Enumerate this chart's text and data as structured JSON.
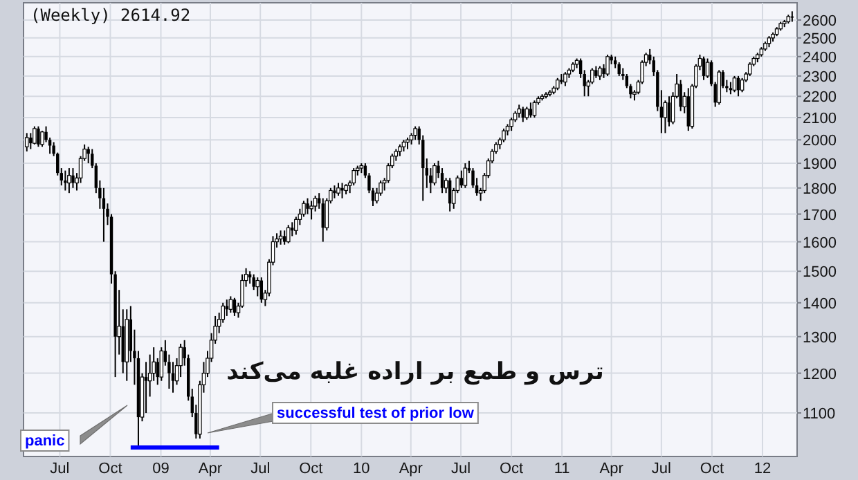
{
  "chart_data": {
    "type": "candlestick",
    "title": "(Weekly) 2614.92",
    "color": "#000000",
    "log": true,
    "grid": true,
    "x": [
      "2008-05-02",
      "2008-05-09",
      "2008-05-16",
      "2008-05-23",
      "2008-05-30",
      "2008-06-06",
      "2008-06-13",
      "2008-06-20",
      "2008-06-27",
      "2008-07-04",
      "2008-07-11",
      "2008-07-18",
      "2008-07-25",
      "2008-08-01",
      "2008-08-08",
      "2008-08-15",
      "2008-08-22",
      "2008-08-29",
      "2008-09-05",
      "2008-09-12",
      "2008-09-19",
      "2008-09-26",
      "2008-10-03",
      "2008-10-10",
      "2008-10-17",
      "2008-10-24",
      "2008-10-31",
      "2008-11-07",
      "2008-11-14",
      "2008-11-21",
      "2008-11-28",
      "2008-12-05",
      "2008-12-12",
      "2008-12-19",
      "2008-12-26",
      "2009-01-02",
      "2009-01-09",
      "2009-01-16",
      "2009-01-23",
      "2009-01-30",
      "2009-02-06",
      "2009-02-13",
      "2009-02-20",
      "2009-02-27",
      "2009-03-06",
      "2009-03-13",
      "2009-03-20",
      "2009-03-27",
      "2009-04-03",
      "2009-04-10",
      "2009-04-17",
      "2009-04-24",
      "2009-05-01",
      "2009-05-08",
      "2009-05-15",
      "2009-05-22",
      "2009-05-29",
      "2009-06-05",
      "2009-06-12",
      "2009-06-19",
      "2009-06-26",
      "2009-07-03",
      "2009-07-10",
      "2009-07-17",
      "2009-07-24",
      "2009-07-31",
      "2009-08-07",
      "2009-08-14",
      "2009-08-21",
      "2009-08-28",
      "2009-09-04",
      "2009-09-11",
      "2009-09-18",
      "2009-09-25",
      "2009-10-02",
      "2009-10-09",
      "2009-10-16",
      "2009-10-23",
      "2009-10-30",
      "2009-11-06",
      "2009-11-13",
      "2009-11-20",
      "2009-11-27",
      "2009-12-04",
      "2009-12-11",
      "2009-12-18",
      "2009-12-25",
      "2010-01-01",
      "2010-01-08",
      "2010-01-15",
      "2010-01-22",
      "2010-01-29",
      "2010-02-05",
      "2010-02-12",
      "2010-02-19",
      "2010-02-26",
      "2010-03-05",
      "2010-03-12",
      "2010-03-19",
      "2010-03-26",
      "2010-04-02",
      "2010-04-09",
      "2010-04-16",
      "2010-04-23",
      "2010-04-30",
      "2010-05-07",
      "2010-05-14",
      "2010-05-21",
      "2010-05-28",
      "2010-06-04",
      "2010-06-11",
      "2010-06-18",
      "2010-06-25",
      "2010-07-02",
      "2010-07-09",
      "2010-07-16",
      "2010-07-23",
      "2010-07-30",
      "2010-08-06",
      "2010-08-13",
      "2010-08-20",
      "2010-08-27",
      "2010-09-03",
      "2010-09-10",
      "2010-09-17",
      "2010-09-24",
      "2010-10-01",
      "2010-10-08",
      "2010-10-15",
      "2010-10-22",
      "2010-10-29",
      "2010-11-05",
      "2010-11-12",
      "2010-11-19",
      "2010-11-26",
      "2010-12-03",
      "2010-12-10",
      "2010-12-17",
      "2010-12-24",
      "2010-12-31",
      "2011-01-07",
      "2011-01-14",
      "2011-01-21",
      "2011-01-28",
      "2011-02-04",
      "2011-02-11",
      "2011-02-18",
      "2011-02-25",
      "2011-03-04",
      "2011-03-11",
      "2011-03-18",
      "2011-03-25",
      "2011-04-01",
      "2011-04-08",
      "2011-04-15",
      "2011-04-22",
      "2011-04-29",
      "2011-05-06",
      "2011-05-13",
      "2011-05-20",
      "2011-05-27",
      "2011-06-03",
      "2011-06-10",
      "2011-06-17",
      "2011-06-24",
      "2011-07-01",
      "2011-07-08",
      "2011-07-15",
      "2011-07-22",
      "2011-07-29",
      "2011-08-05",
      "2011-08-12",
      "2011-08-19",
      "2011-08-26",
      "2011-09-02",
      "2011-09-09",
      "2011-09-16",
      "2011-09-23",
      "2011-09-30",
      "2011-10-07",
      "2011-10-14",
      "2011-10-21",
      "2011-10-28",
      "2011-11-04",
      "2011-11-11",
      "2011-11-18",
      "2011-11-25",
      "2011-12-02",
      "2011-12-09",
      "2011-12-16",
      "2011-12-23",
      "2011-12-30",
      "2012-01-06",
      "2012-01-13",
      "2012-01-20",
      "2012-01-27",
      "2012-02-03",
      "2012-02-10",
      "2012-02-17",
      "2012-02-24"
    ],
    "ohlc": [
      [
        1970,
        2030,
        1950,
        2010
      ],
      [
        2010,
        2030,
        1960,
        1985
      ],
      [
        1985,
        2060,
        1980,
        2050
      ],
      [
        2050,
        2060,
        1970,
        1980
      ],
      [
        1980,
        2040,
        1970,
        2035
      ],
      [
        2035,
        2060,
        1990,
        2000
      ],
      [
        2000,
        2010,
        1940,
        1975
      ],
      [
        1975,
        1990,
        1930,
        1940
      ],
      [
        1940,
        1945,
        1850,
        1860
      ],
      [
        1860,
        1880,
        1810,
        1830
      ],
      [
        1830,
        1870,
        1790,
        1820
      ],
      [
        1820,
        1880,
        1780,
        1850
      ],
      [
        1850,
        1880,
        1800,
        1820
      ],
      [
        1820,
        1860,
        1790,
        1840
      ],
      [
        1840,
        1930,
        1820,
        1920
      ],
      [
        1920,
        1980,
        1910,
        1960
      ],
      [
        1960,
        1970,
        1900,
        1940
      ],
      [
        1940,
        1960,
        1880,
        1890
      ],
      [
        1890,
        1900,
        1780,
        1800
      ],
      [
        1800,
        1830,
        1720,
        1760
      ],
      [
        1760,
        1800,
        1600,
        1720
      ],
      [
        1720,
        1740,
        1660,
        1690
      ],
      [
        1690,
        1700,
        1460,
        1490
      ],
      [
        1490,
        1500,
        1190,
        1300
      ],
      [
        1300,
        1440,
        1250,
        1330
      ],
      [
        1330,
        1380,
        1200,
        1230
      ],
      [
        1230,
        1380,
        1180,
        1350
      ],
      [
        1350,
        1390,
        1230,
        1260
      ],
      [
        1260,
        1320,
        1170,
        1240
      ],
      [
        1240,
        1260,
        1020,
        1090
      ],
      [
        1090,
        1200,
        1080,
        1190
      ],
      [
        1190,
        1230,
        1100,
        1180
      ],
      [
        1180,
        1250,
        1140,
        1200
      ],
      [
        1200,
        1270,
        1180,
        1230
      ],
      [
        1230,
        1240,
        1170,
        1190
      ],
      [
        1190,
        1270,
        1180,
        1260
      ],
      [
        1260,
        1290,
        1220,
        1230
      ],
      [
        1230,
        1250,
        1160,
        1200
      ],
      [
        1200,
        1230,
        1150,
        1180
      ],
      [
        1180,
        1240,
        1170,
        1220
      ],
      [
        1220,
        1280,
        1190,
        1270
      ],
      [
        1270,
        1290,
        1220,
        1240
      ],
      [
        1240,
        1250,
        1130,
        1140
      ],
      [
        1140,
        1160,
        1090,
        1100
      ],
      [
        1100,
        1120,
        1040,
        1050
      ],
      [
        1050,
        1180,
        1040,
        1170
      ],
      [
        1170,
        1230,
        1150,
        1200
      ],
      [
        1200,
        1260,
        1190,
        1240
      ],
      [
        1240,
        1310,
        1230,
        1290
      ],
      [
        1290,
        1360,
        1280,
        1330
      ],
      [
        1330,
        1370,
        1310,
        1350
      ],
      [
        1350,
        1400,
        1340,
        1390
      ],
      [
        1390,
        1410,
        1360,
        1380
      ],
      [
        1380,
        1420,
        1370,
        1410
      ],
      [
        1410,
        1415,
        1360,
        1370
      ],
      [
        1370,
        1400,
        1355,
        1390
      ],
      [
        1390,
        1490,
        1385,
        1470
      ],
      [
        1470,
        1510,
        1450,
        1490
      ],
      [
        1490,
        1500,
        1460,
        1480
      ],
      [
        1480,
        1490,
        1440,
        1450
      ],
      [
        1450,
        1480,
        1420,
        1470
      ],
      [
        1470,
        1480,
        1400,
        1410
      ],
      [
        1410,
        1440,
        1390,
        1430
      ],
      [
        1430,
        1540,
        1420,
        1530
      ],
      [
        1530,
        1620,
        1520,
        1600
      ],
      [
        1600,
        1630,
        1580,
        1610
      ],
      [
        1610,
        1640,
        1590,
        1620
      ],
      [
        1620,
        1640,
        1590,
        1600
      ],
      [
        1600,
        1660,
        1595,
        1650
      ],
      [
        1650,
        1670,
        1620,
        1640
      ],
      [
        1640,
        1690,
        1625,
        1680
      ],
      [
        1680,
        1720,
        1660,
        1700
      ],
      [
        1700,
        1750,
        1690,
        1740
      ],
      [
        1740,
        1760,
        1700,
        1720
      ],
      [
        1720,
        1750,
        1680,
        1730
      ],
      [
        1730,
        1770,
        1710,
        1760
      ],
      [
        1760,
        1780,
        1720,
        1740
      ],
      [
        1740,
        1760,
        1600,
        1650
      ],
      [
        1650,
        1760,
        1640,
        1750
      ],
      [
        1750,
        1800,
        1740,
        1790
      ],
      [
        1790,
        1810,
        1760,
        1780
      ],
      [
        1780,
        1820,
        1770,
        1800
      ],
      [
        1800,
        1820,
        1760,
        1790
      ],
      [
        1790,
        1815,
        1775,
        1810
      ],
      [
        1810,
        1830,
        1780,
        1820
      ],
      [
        1820,
        1880,
        1810,
        1870
      ],
      [
        1870,
        1890,
        1850,
        1880
      ],
      [
        1880,
        1900,
        1860,
        1890
      ],
      [
        1890,
        1900,
        1840,
        1850
      ],
      [
        1850,
        1860,
        1780,
        1790
      ],
      [
        1790,
        1800,
        1730,
        1750
      ],
      [
        1750,
        1800,
        1740,
        1780
      ],
      [
        1780,
        1830,
        1770,
        1820
      ],
      [
        1820,
        1840,
        1790,
        1830
      ],
      [
        1830,
        1900,
        1820,
        1890
      ],
      [
        1890,
        1940,
        1880,
        1930
      ],
      [
        1930,
        1960,
        1910,
        1950
      ],
      [
        1950,
        1980,
        1930,
        1970
      ],
      [
        1970,
        2000,
        1950,
        1990
      ],
      [
        1990,
        2010,
        1960,
        2000
      ],
      [
        2000,
        2030,
        1980,
        2020
      ],
      [
        2020,
        2060,
        2000,
        2050
      ],
      [
        2050,
        2060,
        1980,
        2000
      ],
      [
        2000,
        2020,
        1750,
        1880
      ],
      [
        1880,
        1920,
        1800,
        1850
      ],
      [
        1850,
        1880,
        1780,
        1820
      ],
      [
        1820,
        1900,
        1810,
        1890
      ],
      [
        1890,
        1910,
        1840,
        1860
      ],
      [
        1860,
        1880,
        1780,
        1800
      ],
      [
        1800,
        1840,
        1780,
        1830
      ],
      [
        1830,
        1840,
        1710,
        1740
      ],
      [
        1740,
        1800,
        1720,
        1790
      ],
      [
        1790,
        1850,
        1780,
        1840
      ],
      [
        1840,
        1870,
        1800,
        1810
      ],
      [
        1810,
        1900,
        1800,
        1880
      ],
      [
        1880,
        1910,
        1860,
        1870
      ],
      [
        1870,
        1880,
        1800,
        1810
      ],
      [
        1810,
        1840,
        1770,
        1780
      ],
      [
        1780,
        1800,
        1750,
        1790
      ],
      [
        1790,
        1860,
        1780,
        1850
      ],
      [
        1850,
        1920,
        1840,
        1910
      ],
      [
        1910,
        1960,
        1900,
        1950
      ],
      [
        1950,
        1990,
        1940,
        1980
      ],
      [
        1980,
        2010,
        1960,
        2000
      ],
      [
        2000,
        2050,
        1990,
        2040
      ],
      [
        2040,
        2070,
        2020,
        2060
      ],
      [
        2060,
        2100,
        2040,
        2090
      ],
      [
        2090,
        2130,
        2080,
        2120
      ],
      [
        2120,
        2160,
        2100,
        2140
      ],
      [
        2140,
        2150,
        2080,
        2100
      ],
      [
        2100,
        2150,
        2090,
        2140
      ],
      [
        2140,
        2170,
        2100,
        2110
      ],
      [
        2110,
        2180,
        2100,
        2170
      ],
      [
        2170,
        2200,
        2160,
        2190
      ],
      [
        2190,
        2210,
        2180,
        2200
      ],
      [
        2200,
        2220,
        2190,
        2210
      ],
      [
        2210,
        2230,
        2200,
        2220
      ],
      [
        2220,
        2250,
        2210,
        2240
      ],
      [
        2240,
        2290,
        2230,
        2280
      ],
      [
        2280,
        2310,
        2260,
        2270
      ],
      [
        2270,
        2320,
        2250,
        2310
      ],
      [
        2310,
        2340,
        2290,
        2330
      ],
      [
        2330,
        2370,
        2320,
        2360
      ],
      [
        2360,
        2390,
        2340,
        2380
      ],
      [
        2380,
        2390,
        2290,
        2310
      ],
      [
        2310,
        2330,
        2200,
        2250
      ],
      [
        2250,
        2280,
        2200,
        2270
      ],
      [
        2270,
        2340,
        2260,
        2330
      ],
      [
        2330,
        2350,
        2290,
        2300
      ],
      [
        2300,
        2350,
        2280,
        2340
      ],
      [
        2340,
        2360,
        2290,
        2310
      ],
      [
        2310,
        2410,
        2300,
        2400
      ],
      [
        2400,
        2410,
        2360,
        2380
      ],
      [
        2380,
        2400,
        2340,
        2360
      ],
      [
        2360,
        2370,
        2300,
        2310
      ],
      [
        2310,
        2340,
        2280,
        2300
      ],
      [
        2300,
        2310,
        2240,
        2250
      ],
      [
        2250,
        2260,
        2190,
        2210
      ],
      [
        2210,
        2230,
        2180,
        2220
      ],
      [
        2220,
        2280,
        2210,
        2270
      ],
      [
        2270,
        2380,
        2260,
        2370
      ],
      [
        2370,
        2420,
        2350,
        2410
      ],
      [
        2410,
        2440,
        2360,
        2380
      ],
      [
        2380,
        2400,
        2300,
        2320
      ],
      [
        2320,
        2330,
        2130,
        2150
      ],
      [
        2150,
        2230,
        2030,
        2100
      ],
      [
        2100,
        2180,
        2030,
        2170
      ],
      [
        2170,
        2200,
        2060,
        2080
      ],
      [
        2080,
        2220,
        2070,
        2200
      ],
      [
        2200,
        2310,
        2190,
        2260
      ],
      [
        2260,
        2280,
        2130,
        2150
      ],
      [
        2150,
        2220,
        2120,
        2200
      ],
      [
        2200,
        2240,
        2040,
        2060
      ],
      [
        2060,
        2260,
        2050,
        2250
      ],
      [
        2250,
        2360,
        2240,
        2350
      ],
      [
        2350,
        2410,
        2330,
        2390
      ],
      [
        2390,
        2400,
        2280,
        2300
      ],
      [
        2300,
        2390,
        2290,
        2370
      ],
      [
        2370,
        2380,
        2250,
        2260
      ],
      [
        2260,
        2270,
        2150,
        2170
      ],
      [
        2170,
        2330,
        2160,
        2320
      ],
      [
        2320,
        2330,
        2240,
        2250
      ],
      [
        2250,
        2280,
        2220,
        2240
      ],
      [
        2240,
        2270,
        2210,
        2230
      ],
      [
        2230,
        2300,
        2220,
        2290
      ],
      [
        2290,
        2300,
        2200,
        2230
      ],
      [
        2230,
        2290,
        2220,
        2280
      ],
      [
        2280,
        2320,
        2270,
        2310
      ],
      [
        2310,
        2370,
        2300,
        2360
      ],
      [
        2360,
        2400,
        2350,
        2390
      ],
      [
        2390,
        2420,
        2370,
        2410
      ],
      [
        2410,
        2450,
        2400,
        2440
      ],
      [
        2440,
        2480,
        2430,
        2470
      ],
      [
        2470,
        2510,
        2450,
        2500
      ],
      [
        2500,
        2530,
        2480,
        2520
      ],
      [
        2520,
        2560,
        2510,
        2550
      ],
      [
        2550,
        2590,
        2540,
        2580
      ],
      [
        2580,
        2600,
        2560,
        2590
      ],
      [
        2590,
        2630,
        2580,
        2620
      ],
      [
        2620,
        2650,
        2590,
        2614.92
      ]
    ],
    "series": [
      {
        "type": "line",
        "x": [
          "2008-11-07",
          "2009-04-17"
        ],
        "values": [
          1020,
          1020
        ],
        "color": "#0000ff"
      }
    ],
    "xlim": [
      "2008-04-26",
      "2012-03-04"
    ],
    "ylim": [
      1000,
      2700
    ],
    "xticks": [
      {
        "value": "2008-07-01",
        "label": "Jul"
      },
      {
        "value": "2008-10-01",
        "label": "Oct"
      },
      {
        "value": "2009-01-01",
        "label": "09"
      },
      {
        "value": "2009-04-01",
        "label": "Apr"
      },
      {
        "value": "2009-07-01",
        "label": "Jul"
      },
      {
        "value": "2009-10-01",
        "label": "Oct"
      },
      {
        "value": "2010-01-01",
        "label": "10"
      },
      {
        "value": "2010-04-01",
        "label": "Apr"
      },
      {
        "value": "2010-07-01",
        "label": "Jul"
      },
      {
        "value": "2010-10-01",
        "label": "Oct"
      },
      {
        "value": "2011-01-01",
        "label": "11"
      },
      {
        "value": "2011-04-01",
        "label": "Apr"
      },
      {
        "value": "2011-07-01",
        "label": "Jul"
      },
      {
        "value": "2011-10-01",
        "label": "Oct"
      },
      {
        "value": "2012-01-01",
        "label": "12"
      }
    ],
    "yticks": [
      1100,
      1200,
      1300,
      1400,
      1500,
      1600,
      1700,
      1800,
      1900,
      2000,
      2100,
      2200,
      2300,
      2400,
      2500,
      2600
    ],
    "annotations": [
      "panic",
      "successful test of prior low",
      "ترس و طمع بر اراده غلبه می‌کند"
    ]
  }
}
